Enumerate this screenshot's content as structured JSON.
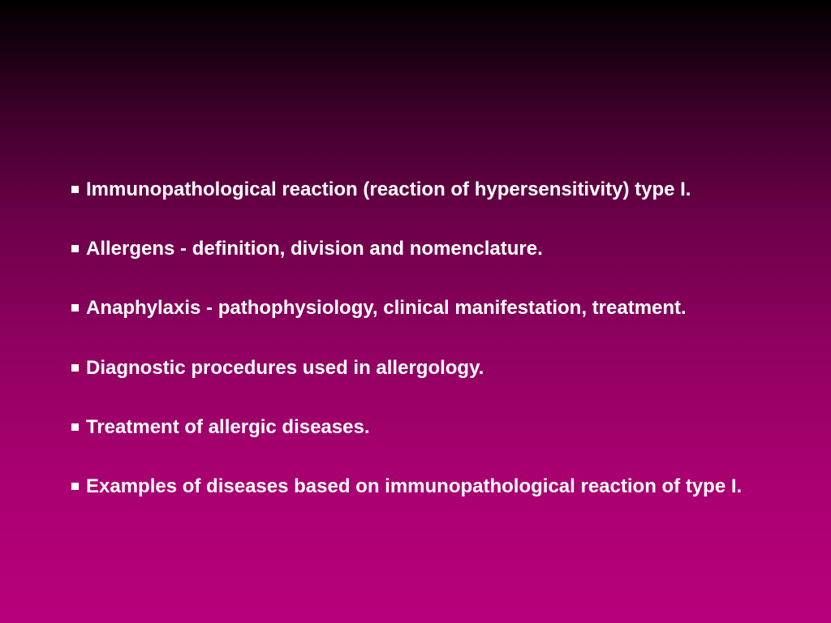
{
  "slide": {
    "background_gradient_top": "#000000",
    "background_gradient_bottom": "#b8007c",
    "text_color": "#ffffff",
    "font_size": 24,
    "font_weight": "bold",
    "bullet_color": "#ffffff",
    "bullet_size": 9,
    "bullets": [
      "Immunopathological reaction (reaction of hypersensitivity) type I.",
      "Allergens - definition, division and nomenclature.",
      "Anaphylaxis - pathophysiology, clinical manifestation, treatment.",
      "Diagnostic procedures used in allergology.",
      "Treatment of allergic diseases.",
      "Examples of diseases based on immunopathological reaction of type I."
    ]
  }
}
